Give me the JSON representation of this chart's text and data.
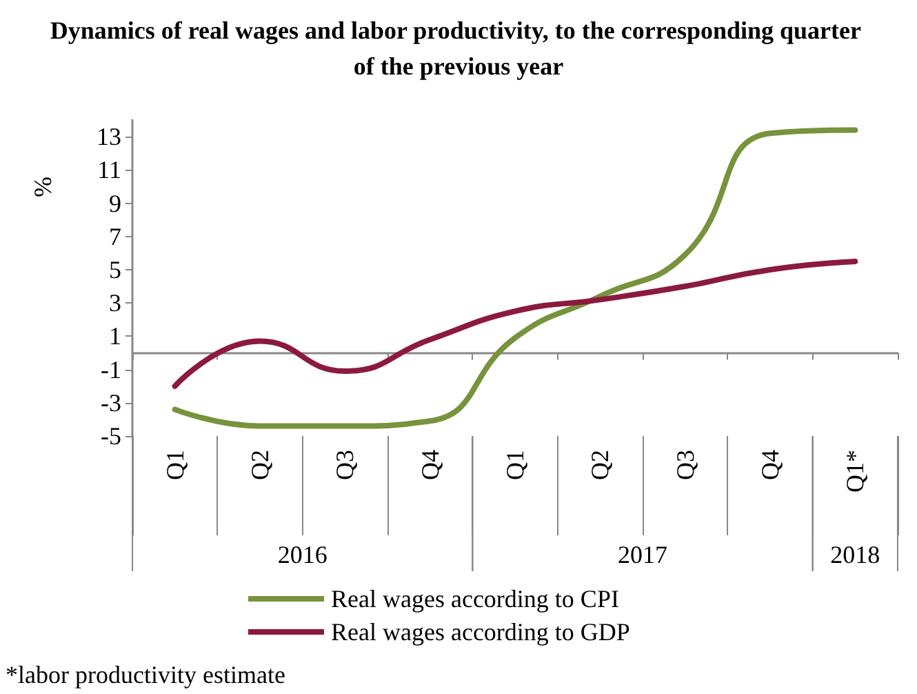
{
  "chart_data": {
    "type": "line",
    "title": "Dynamics of real wages and labor productivity, to the corresponding quarter of the previous year",
    "ylabel": "%",
    "categories": [
      "Q1",
      "Q2",
      "Q3",
      "Q4",
      "Q1",
      "Q2",
      "Q3",
      "Q4",
      "Q1*"
    ],
    "series": [
      {
        "name": "Real wages according to CPI",
        "color": "#77933c",
        "values": [
          -3.4,
          -4.4,
          -4.4,
          -4.1,
          0.9,
          3.4,
          5.9,
          13.2,
          13.4
        ]
      },
      {
        "name": "Real wages according to GDP",
        "color": "#8b1a3e",
        "values": [
          -2.0,
          0.7,
          -1.1,
          0.8,
          2.5,
          3.2,
          4.0,
          5.0,
          5.5
        ]
      }
    ],
    "ylim": [
      -5,
      14
    ],
    "yticks": [
      -5,
      -3,
      -1,
      1,
      3,
      5,
      7,
      9,
      11,
      13
    ],
    "grid": false,
    "legend": "bottom",
    "marker": "none",
    "line_style": "solid",
    "annotations": [
      "2016",
      "2017",
      "2018",
      "*labor productivity estimate"
    ]
  }
}
